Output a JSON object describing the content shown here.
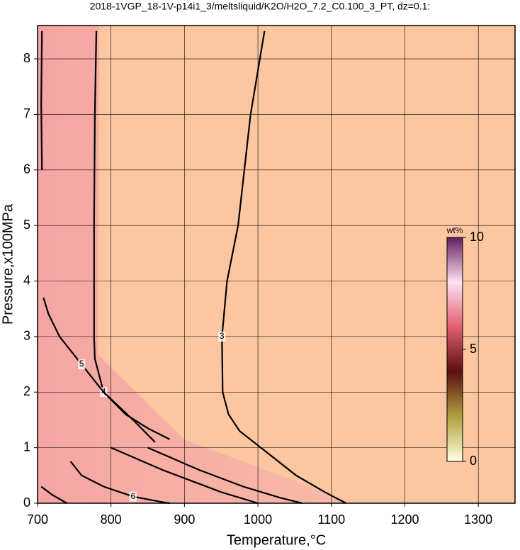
{
  "chart_data": {
    "type": "contour",
    "title": "2018-1VGP_18-1V-p14i1_3/meltsliquid/K2O/H2O_7.2_C0.100_3_PT, dz=0.1:",
    "x_label": "Temperature,°C",
    "y_label": "Pressure,x100MPa",
    "xlim": [
      700,
      1350
    ],
    "ylim": [
      0,
      8.6
    ],
    "xticks": [
      700,
      800,
      900,
      1000,
      1100,
      1200,
      1300
    ],
    "yticks": [
      0,
      1,
      2,
      3,
      4,
      5,
      6,
      7,
      8
    ],
    "grid": true,
    "series": [
      {
        "level": 3,
        "x": [
          1009,
          990,
          973,
          958,
          951,
          952,
          960,
          975,
          1004,
          1052,
          1091,
          1120
        ],
        "y": [
          8.5,
          7,
          5,
          4,
          3,
          2,
          1.6,
          1.3,
          1,
          0.5,
          0.2,
          0
        ]
      },
      {
        "level": 4,
        "x": [
          780,
          778,
          777,
          777,
          778,
          790,
          820,
          850,
          880,
          null,
          850,
          920,
          980,
          1030,
          1060,
          null,
          706,
          705,
          706
        ],
        "y": [
          8.5,
          7,
          5,
          3,
          2.6,
          2,
          1.6,
          1.35,
          1.15,
          null,
          1.0,
          0.6,
          0.3,
          0.1,
          0,
          null,
          8.5,
          7.2,
          6.0
        ]
      },
      {
        "level": 5,
        "x": [
          708,
          715,
          730,
          760,
          790,
          830,
          860,
          null,
          800,
          870,
          950,
          1000
        ],
        "y": [
          3.7,
          3.4,
          3.0,
          2.5,
          2.0,
          1.5,
          1.1,
          null,
          1.0,
          0.6,
          0.2,
          0
        ]
      },
      {
        "level": 6,
        "x": [
          745,
          760,
          790,
          830,
          870,
          880,
          null,
          705,
          720,
          740
        ],
        "y": [
          0.75,
          0.5,
          0.3,
          0.12,
          0.02,
          0,
          null,
          0.3,
          0.15,
          0.0
        ]
      }
    ],
    "line_color": "#000",
    "colorbar": {
      "label": "wt%",
      "lim": [
        0,
        10
      ],
      "ticks": [
        0,
        5,
        10
      ],
      "colors": [
        "#ffffe0",
        "#b0a040",
        "#5a1010",
        "#e06070",
        "#ffe0f0",
        "#602060"
      ]
    }
  }
}
